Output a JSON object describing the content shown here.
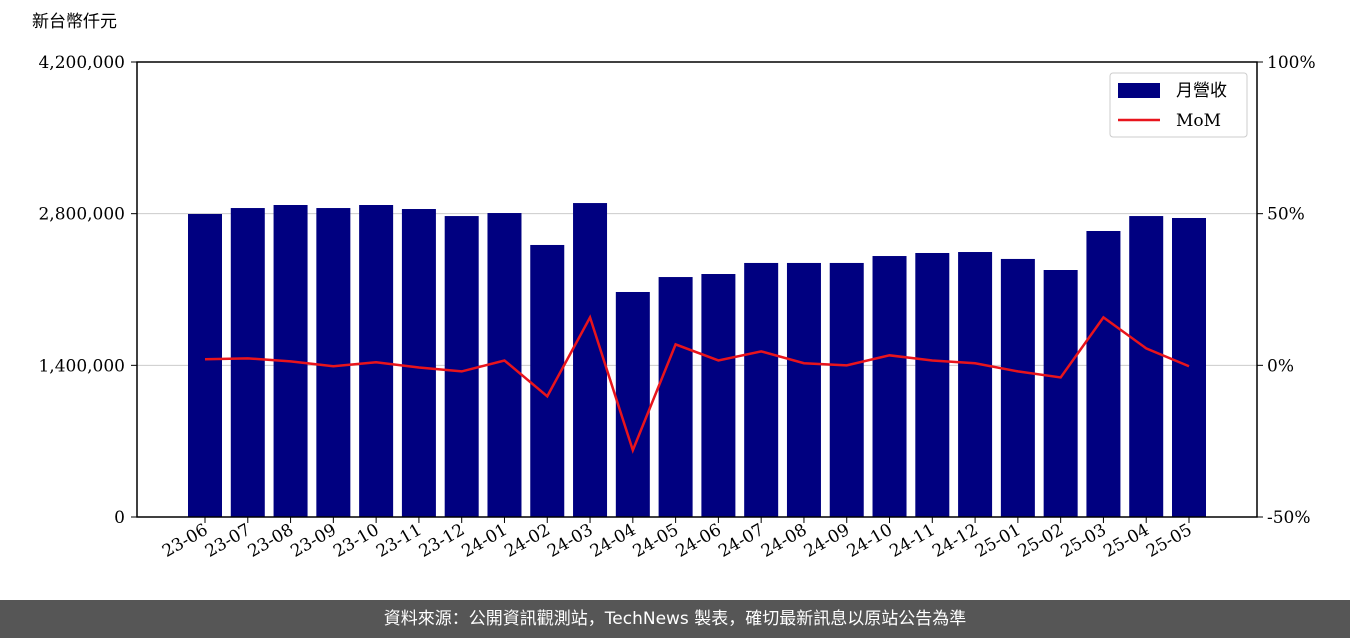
{
  "chart_data": {
    "type": "bar-line",
    "y_label": "新台幣仟元",
    "categories": [
      "23-06",
      "23-07",
      "23-08",
      "23-09",
      "23-10",
      "23-11",
      "23-12",
      "24-01",
      "24-02",
      "24-03",
      "24-04",
      "24-05",
      "24-06",
      "24-07",
      "24-08",
      "24-09",
      "24-10",
      "24-11",
      "24-12",
      "25-01",
      "25-02",
      "25-03",
      "25-04",
      "25-05"
    ],
    "series": [
      {
        "name": "月營收",
        "color": "#000080",
        "type": "bar",
        "values": [
          2797000,
          2852000,
          2880000,
          2852000,
          2880000,
          2843000,
          2778000,
          2806000,
          2511000,
          2898000,
          2077000,
          2215000,
          2243000,
          2345000,
          2345000,
          2345000,
          2409000,
          2437000,
          2446000,
          2382000,
          2280000,
          2640000,
          2778000,
          2760000
        ]
      },
      {
        "name": "MoM",
        "color": "#e8141c",
        "type": "line",
        "axis": "y2",
        "values": [
          2,
          2.3,
          1.3,
          -0.3,
          1,
          -0.7,
          -2,
          1.6,
          -10.2,
          15.8,
          -28,
          6.9,
          1.6,
          4.6,
          0.7,
          0,
          3.3,
          1.6,
          0.7,
          -2,
          -4,
          15.8,
          5.6,
          -0.3
        ]
      }
    ],
    "ylim": [
      0,
      4200000
    ],
    "yticks": [
      {
        "value": 0,
        "label": "0"
      },
      {
        "value": 1400000,
        "label": "1,400,000"
      },
      {
        "value": 2800000,
        "label": "2,800,000"
      },
      {
        "value": 4200000,
        "label": "4,200,000"
      }
    ],
    "y2lim": [
      -50,
      100
    ],
    "y2ticks": [
      {
        "value": -50,
        "label": "-50%"
      },
      {
        "value": 0,
        "label": "0%"
      },
      {
        "value": 50,
        "label": "50%"
      },
      {
        "value": 100,
        "label": "100%"
      }
    ],
    "grid": true,
    "legend": "upper right"
  },
  "footer": "資料來源：公開資訊觀測站，TechNews 製表，確切最新訊息以原站公告為準"
}
